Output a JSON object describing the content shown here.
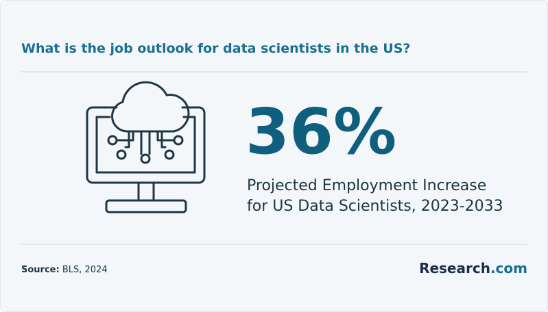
{
  "header": {
    "title": "What is the job outlook for data scientists in the US?"
  },
  "stat": {
    "value": "36%",
    "description": [
      "Projected Employment Increase",
      "for US Data Scientists, 2023-2033"
    ]
  },
  "footer": {
    "source_label": "Source:",
    "source": "BLS, 2024",
    "brand": "Research",
    "brand_suffix": ".com"
  }
}
